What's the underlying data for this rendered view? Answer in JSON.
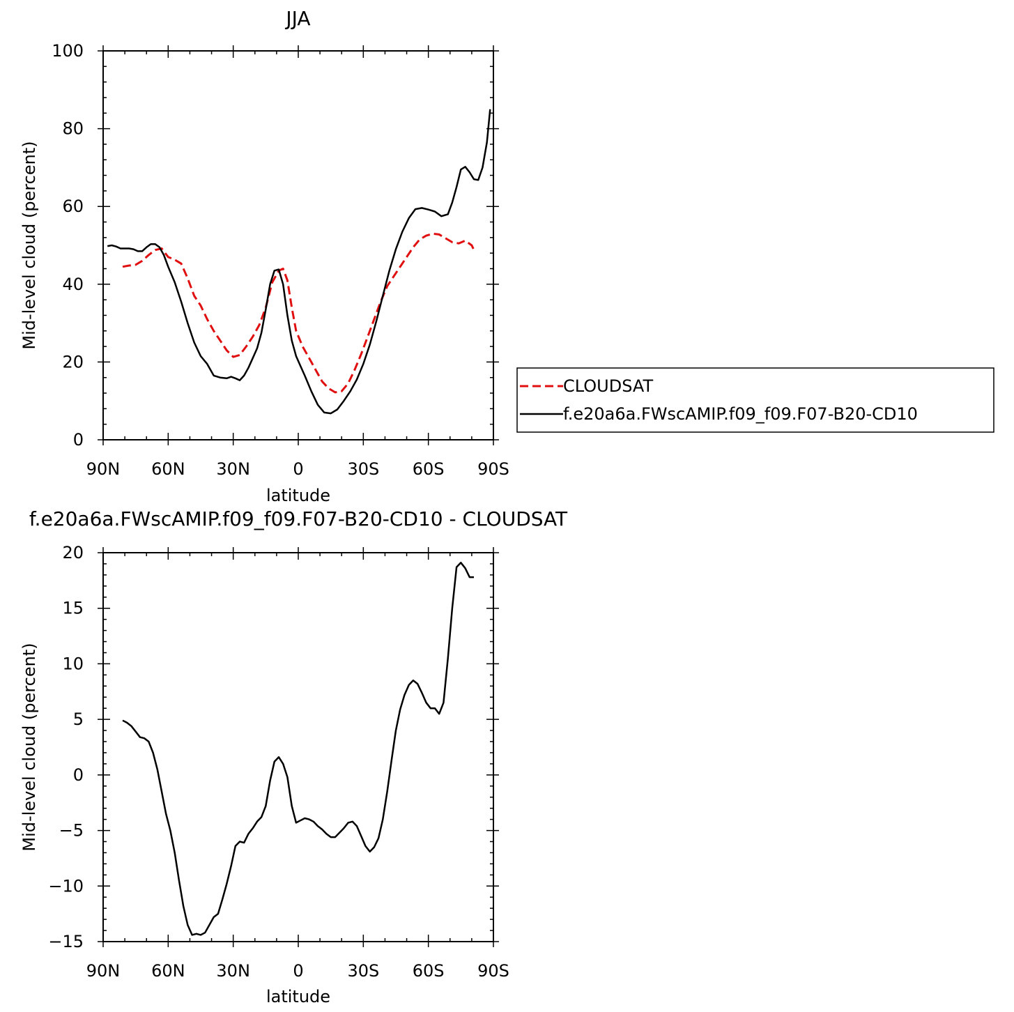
{
  "colors": {
    "cloudsat": "#e01010",
    "model": "#000000"
  },
  "chart_data": [
    {
      "type": "line",
      "title": "JJA",
      "xlabel": "latitude",
      "ylabel": "Mid-level cloud (percent)",
      "xlim": [
        -90,
        90
      ],
      "ylim": [
        0,
        100
      ],
      "xticks": [
        -90,
        -60,
        -30,
        0,
        30,
        60,
        90
      ],
      "xtick_labels": [
        "90N",
        "60N",
        "30N",
        "0",
        "30S",
        "60S",
        "90S"
      ],
      "yticks": [
        0,
        20,
        40,
        60,
        80,
        100
      ],
      "ytick_labels": [
        "0",
        "20",
        "40",
        "60",
        "80",
        "100"
      ],
      "legend": {
        "placement": "right",
        "entries": [
          "CLOUDSAT",
          "f.e20a6a.FWscAMIP.f09_f09.F07-B20-CD10"
        ]
      },
      "series": [
        {
          "name": "CLOUDSAT",
          "style": "dashed",
          "color": "#e01010",
          "x": [
            -81,
            -78,
            -75,
            -72,
            -69,
            -66,
            -63,
            -60,
            -57,
            -54,
            -51,
            -48,
            -45,
            -42,
            -39,
            -36,
            -33,
            -30,
            -27,
            -24,
            -21,
            -18,
            -15,
            -12,
            -9,
            -7,
            -5,
            -3,
            -1,
            2,
            5,
            8,
            11,
            14,
            17,
            20,
            23,
            26,
            29,
            32,
            35,
            38,
            41,
            44,
            47,
            50,
            53,
            56,
            59,
            62,
            65,
            68,
            71,
            74,
            77,
            80,
            81
          ],
          "y": [
            44.5,
            44.8,
            45.0,
            46.0,
            47.5,
            48.8,
            49.2,
            47.0,
            46.3,
            45.3,
            41.5,
            37.0,
            34.5,
            31.0,
            28.0,
            25.5,
            23.0,
            21.3,
            21.8,
            24.0,
            26.5,
            29.5,
            34.0,
            40.5,
            43.5,
            44.0,
            41.0,
            34.0,
            28.0,
            24.0,
            21.0,
            18.0,
            15.0,
            13.2,
            12.2,
            12.5,
            14.5,
            18.0,
            22.0,
            26.5,
            31.0,
            35.5,
            39.5,
            42.0,
            44.5,
            47.0,
            49.5,
            51.5,
            52.5,
            53.0,
            52.8,
            51.8,
            50.8,
            50.5,
            51.2,
            50.0,
            48.8
          ]
        },
        {
          "name": "f.e20a6a.FWscAMIP.f09_f09.F07-B20-CD10",
          "style": "solid",
          "color": "#000000",
          "x": [
            -88,
            -86,
            -84,
            -82,
            -80,
            -78,
            -76,
            -74,
            -72,
            -70,
            -68,
            -66,
            -64,
            -62,
            -60,
            -57,
            -54,
            -51,
            -48,
            -45,
            -42,
            -39,
            -36,
            -33,
            -31,
            -29,
            -27,
            -25,
            -23,
            -21,
            -19,
            -17,
            -15,
            -13,
            -11,
            -9,
            -7,
            -5,
            -3,
            -1,
            1,
            3,
            6,
            9,
            12,
            15,
            18,
            21,
            24,
            27,
            30,
            33,
            36,
            39,
            42,
            45,
            48,
            51,
            54,
            57,
            60,
            63,
            66,
            69,
            71,
            73,
            75,
            77,
            79,
            81,
            83,
            85,
            87,
            88.5
          ],
          "y": [
            49.8,
            50.0,
            49.7,
            49.2,
            49.2,
            49.2,
            49.0,
            48.5,
            48.5,
            49.5,
            50.3,
            50.3,
            49.5,
            47.5,
            44.5,
            40.5,
            35.5,
            30.0,
            25.0,
            21.5,
            19.5,
            16.5,
            16.0,
            15.8,
            16.2,
            15.8,
            15.3,
            16.5,
            18.5,
            21.0,
            23.5,
            27.5,
            33.5,
            40.0,
            43.5,
            43.8,
            40.0,
            32.0,
            25.5,
            21.5,
            19.0,
            16.5,
            12.5,
            9.0,
            7.0,
            6.8,
            7.8,
            10.0,
            12.5,
            15.5,
            19.5,
            24.5,
            30.5,
            37.0,
            43.5,
            49.0,
            53.5,
            57.0,
            59.3,
            59.6,
            59.2,
            58.7,
            57.5,
            58.0,
            61.0,
            65.0,
            69.5,
            70.2,
            68.8,
            67.0,
            66.8,
            70.0,
            76.5,
            85.0
          ]
        }
      ]
    },
    {
      "type": "line",
      "title": "f.e20a6a.FWscAMIP.f09_f09.F07-B20-CD10 - CLOUDSAT",
      "xlabel": "latitude",
      "ylabel": "Mid-level cloud (percent)",
      "xlim": [
        -90,
        90
      ],
      "ylim": [
        -15,
        20
      ],
      "xticks": [
        -90,
        -60,
        -30,
        0,
        30,
        60,
        90
      ],
      "xtick_labels": [
        "90N",
        "60N",
        "30N",
        "0",
        "30S",
        "60S",
        "90S"
      ],
      "yticks": [
        -15,
        -10,
        -5,
        0,
        5,
        10,
        15,
        20
      ],
      "ytick_labels": [
        "−15",
        "−10",
        "−5",
        "0",
        "5",
        "10",
        "15",
        "20"
      ],
      "series": [
        {
          "style": "solid",
          "color": "#000000",
          "x": [
            -81,
            -79,
            -77,
            -75,
            -73,
            -71,
            -69,
            -67,
            -65,
            -63,
            -61,
            -59,
            -57,
            -55,
            -53,
            -51,
            -49,
            -47,
            -45,
            -43,
            -41,
            -39,
            -37,
            -35,
            -33,
            -31,
            -29,
            -27,
            -25,
            -23,
            -21,
            -19,
            -17,
            -15,
            -13,
            -11,
            -9,
            -7,
            -5,
            -3,
            -1,
            1,
            3,
            5,
            7,
            9,
            11,
            13,
            15,
            17,
            19,
            21,
            23,
            25,
            27,
            29,
            31,
            33,
            35,
            37,
            39,
            41,
            43,
            45,
            47,
            49,
            51,
            53,
            55,
            57,
            59,
            61,
            63,
            65,
            67,
            69,
            71,
            73,
            75,
            77,
            79,
            81
          ],
          "y": [
            4.9,
            4.7,
            4.4,
            3.9,
            3.4,
            3.3,
            3.0,
            2.0,
            0.5,
            -1.5,
            -3.5,
            -5.0,
            -7.0,
            -9.5,
            -11.8,
            -13.5,
            -14.4,
            -14.3,
            -14.4,
            -14.2,
            -13.5,
            -12.8,
            -12.5,
            -11.2,
            -9.8,
            -8.2,
            -6.4,
            -6.0,
            -6.1,
            -5.3,
            -4.8,
            -4.2,
            -3.8,
            -2.8,
            -0.5,
            1.2,
            1.6,
            1.0,
            -0.2,
            -2.8,
            -4.3,
            -4.1,
            -3.9,
            -4.0,
            -4.2,
            -4.6,
            -4.9,
            -5.3,
            -5.6,
            -5.6,
            -5.2,
            -4.8,
            -4.3,
            -4.2,
            -4.6,
            -5.5,
            -6.4,
            -6.9,
            -6.5,
            -5.7,
            -4.0,
            -1.5,
            1.3,
            4.0,
            5.9,
            7.2,
            8.1,
            8.5,
            8.2,
            7.4,
            6.5,
            6.0,
            6.0,
            5.5,
            6.5,
            10.5,
            15.0,
            18.7,
            19.1,
            18.6,
            17.8,
            17.8
          ]
        }
      ]
    }
  ]
}
